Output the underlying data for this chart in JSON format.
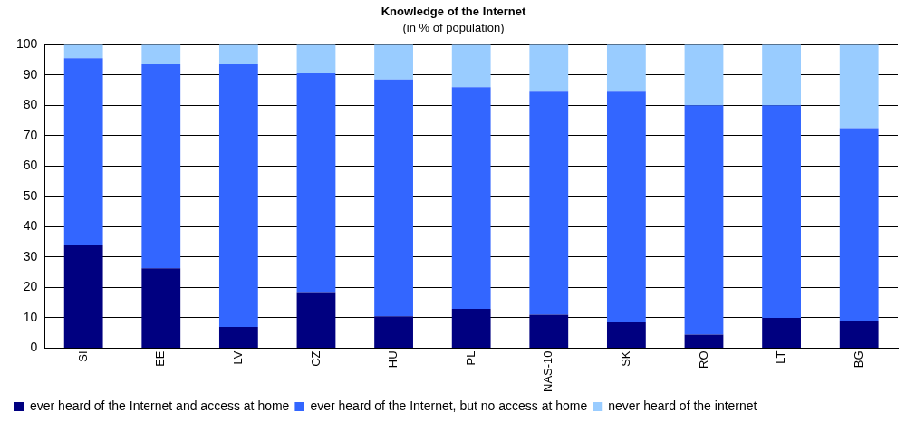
{
  "chart_data": {
    "type": "bar",
    "title": "Knowledge of the Internet",
    "subtitle": "(in % of population)",
    "categories": [
      "SI",
      "EE",
      "LV",
      "CZ",
      "HU",
      "PL",
      "NAS-10",
      "SK",
      "RO",
      "LT",
      "BG"
    ],
    "stacked": true,
    "series": [
      {
        "name": "ever heard of the Internet and access at home",
        "color": "#000080",
        "values": [
          34,
          26.3,
          7,
          18.5,
          10.5,
          13,
          11,
          8.5,
          4.5,
          10,
          9
        ]
      },
      {
        "name": "ever heard of the Internet, but no access at home",
        "color": "#3366ff",
        "values": [
          61.5,
          67.2,
          86.5,
          72,
          78,
          73,
          73.5,
          76,
          75.5,
          70,
          63.5
        ]
      },
      {
        "name": "never heard of the internet",
        "color": "#99ccff",
        "values": [
          4.5,
          6.5,
          6.5,
          9.5,
          11.5,
          14,
          15.5,
          15.5,
          20,
          20,
          27.5
        ]
      }
    ],
    "ylim": [
      0,
      100
    ],
    "yticks": [
      0,
      10,
      20,
      30,
      40,
      50,
      60,
      70,
      80,
      90,
      100
    ],
    "grid": "y",
    "legend": "bottom"
  }
}
